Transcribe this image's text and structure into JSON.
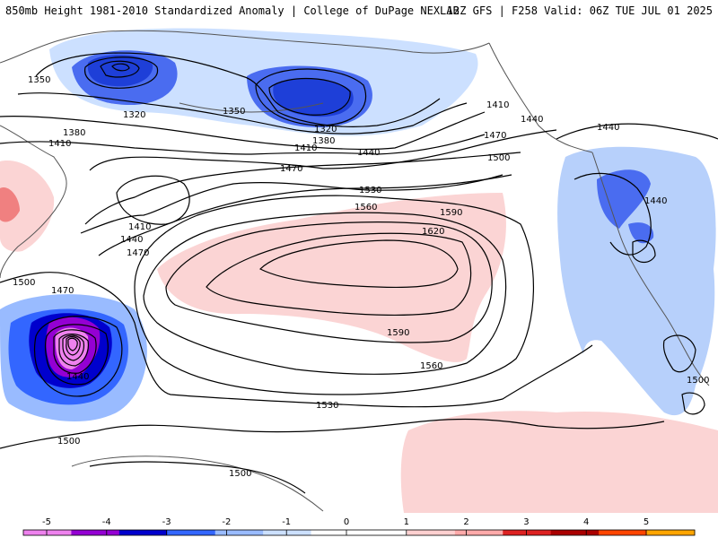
{
  "header": {
    "title_left": "850mb Height 1981-2010 Standardized Anomaly | College of DuPage NEXLAB",
    "title_right": "12Z GFS | F258 Valid: 06Z TUE JUL 01 2025"
  },
  "map": {
    "contour_labels": [
      "1350",
      "1320",
      "1350",
      "1320",
      "1380",
      "1410",
      "1380",
      "1410",
      "1440",
      "1470",
      "1410",
      "1470",
      "1440",
      "1410",
      "1440",
      "1470",
      "1500",
      "1530",
      "1560",
      "1590",
      "1620",
      "1590",
      "1560",
      "1530",
      "1500",
      "1470",
      "1440",
      "1500",
      "1500",
      "1440",
      "1440",
      "1500"
    ]
  },
  "colorbar": {
    "ticks": [
      "-5",
      "-4",
      "-3",
      "-2",
      "-1",
      "0",
      "1",
      "2",
      "3",
      "4",
      "5"
    ],
    "colors": [
      "#ee82ee",
      "#9400d3",
      "#0000cd",
      "#3366ff",
      "#99bbff",
      "#cce0ff",
      "#ffffff",
      "#ffffff",
      "#ffd0d0",
      "#ffaaaa",
      "#dd2222",
      "#aa0000",
      "#ff4500",
      "#ffa500"
    ]
  }
}
